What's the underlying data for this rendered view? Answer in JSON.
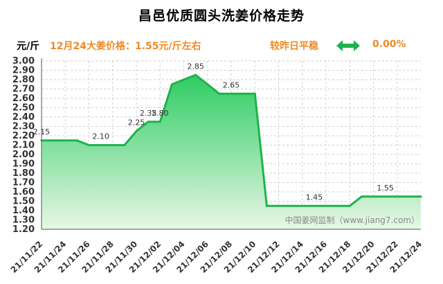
{
  "title": "昌邑优质圆头洗姜价格走势",
  "infobar": {
    "unit": "元/斤",
    "price_text": "12月24大姜价格：1.55元/斤左右",
    "compare_text": "较昨日平稳",
    "change_text": "0.00%",
    "flat_icon": "double-arrow-icon"
  },
  "colors": {
    "line": "#1db34a",
    "fill_top": "#2ecc63",
    "fill_bottom": "#e8f7e6",
    "accent_text": "#f08a24",
    "grid": "#cfcfcf"
  },
  "chart_data": {
    "type": "area",
    "title": "昌邑优质圆头洗姜价格走势",
    "ylabel": "元/斤",
    "ylim": [
      1.2,
      3.0
    ],
    "y_ticks": [
      "3.00",
      "2.90",
      "2.80",
      "2.70",
      "2.60",
      "2.50",
      "2.40",
      "2.30",
      "2.20",
      "2.10",
      "2.00",
      "1.90",
      "1.80",
      "1.70",
      "1.60",
      "1.50",
      "1.40",
      "1.30",
      "1.20"
    ],
    "x_ticks": [
      "21/11/22",
      "21/11/24",
      "21/11/26",
      "21/11/28",
      "21/11/30",
      "21/12/02",
      "21/12/04",
      "21/12/06",
      "21/12/08",
      "21/12/10",
      "21/12/12",
      "21/12/14",
      "21/12/16",
      "21/12/18",
      "21/12/20",
      "21/12/22",
      "21/12/24"
    ],
    "x_range": [
      "2021-11-22",
      "2021-12-24"
    ],
    "x": [
      "2021-11-22",
      "2021-11-25",
      "2021-11-26",
      "2021-11-29",
      "2021-11-30",
      "2021-12-01",
      "2021-12-02",
      "2021-12-03",
      "2021-12-04",
      "2021-12-05",
      "2021-12-06",
      "2021-12-07",
      "2021-12-10",
      "2021-12-11",
      "2021-12-18",
      "2021-12-19",
      "2021-12-24"
    ],
    "values": [
      2.15,
      2.15,
      2.1,
      2.1,
      2.25,
      2.35,
      2.35,
      2.75,
      2.8,
      2.85,
      2.75,
      2.65,
      2.65,
      1.45,
      1.45,
      1.55,
      1.55
    ],
    "data_labels": [
      {
        "x": "2021-11-22",
        "text": "2.15"
      },
      {
        "x": "2021-11-27",
        "text": "2.10"
      },
      {
        "x": "2021-11-30",
        "text": "2.25"
      },
      {
        "x": "2021-12-01",
        "text": "2.35"
      },
      {
        "x": "2021-12-02",
        "text": "2.80"
      },
      {
        "x": "2021-12-05",
        "text": "2.85"
      },
      {
        "x": "2021-12-08",
        "text": "2.65"
      },
      {
        "x": "2021-12-15",
        "text": "1.45"
      },
      {
        "x": "2021-12-21",
        "text": "1.55"
      }
    ],
    "grid": true,
    "watermark": "中国姜网监制（www.jiang7.com）"
  }
}
